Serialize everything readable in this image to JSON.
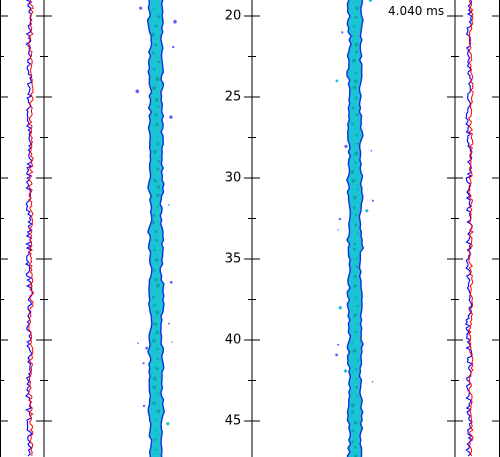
{
  "time_label": "4.040 ms",
  "chart_data": {
    "type": "line",
    "title": "",
    "xlabel": "",
    "ylabel": "",
    "y_axis": {
      "ticks": [
        20,
        25,
        30,
        35,
        40,
        45
      ],
      "tick_labels": [
        "20",
        "25",
        "30",
        "35",
        "40",
        "45"
      ],
      "ylim": [
        17.5,
        47.5
      ],
      "inverted": true
    },
    "series": [
      {
        "panel": "left-trace",
        "color": "#0000ff"
      },
      {
        "panel": "left-trace",
        "color": "#ff0000"
      },
      {
        "panel": "left-column",
        "color": "#00c8d8"
      },
      {
        "panel": "right-column",
        "color": "#00c8d8"
      },
      {
        "panel": "right-trace",
        "color": "#0000ff"
      },
      {
        "panel": "right-trace",
        "color": "#ff0000"
      }
    ],
    "grid": false
  },
  "colors": {
    "axis": "#000000",
    "trace_blue": "#0000ff",
    "trace_red": "#ff0000",
    "column_fill": "#1bc3d3",
    "column_edge": "#1030e0",
    "column_core": "#0f9aa8"
  }
}
